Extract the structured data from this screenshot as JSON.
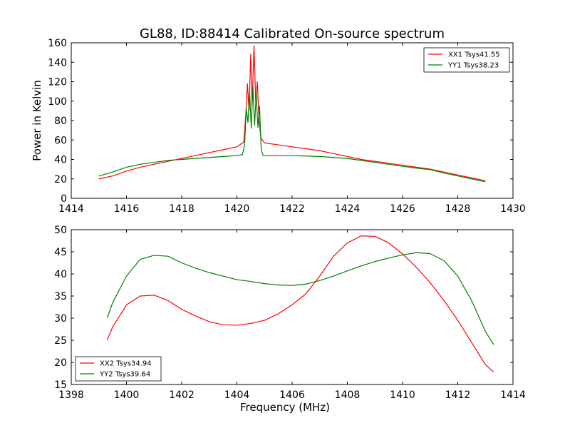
{
  "figure": {
    "title": "GL88, ID:88414 Calibrated On-source spectrum",
    "shared_xlabel": "Frequency (MHz)"
  },
  "colors": {
    "series1": "#ff0000",
    "series2": "#008000",
    "axes": "#000000",
    "background": "#ffffff"
  },
  "chart_data": [
    {
      "type": "line",
      "ylabel": "Power in Kelvin",
      "xlim": [
        1414,
        1430
      ],
      "ylim": [
        0,
        160
      ],
      "xticks": [
        1414,
        1416,
        1418,
        1420,
        1422,
        1424,
        1426,
        1428,
        1430
      ],
      "yticks": [
        0,
        20,
        40,
        60,
        80,
        100,
        120,
        140,
        160
      ],
      "legend_position": "top-right",
      "grid": false,
      "series": [
        {
          "name": "XX1 Tsys41.55",
          "color": "#ff0000",
          "points": [
            [
              1415.0,
              20
            ],
            [
              1415.5,
              23
            ],
            [
              1416.0,
              28
            ],
            [
              1416.5,
              32
            ],
            [
              1417.0,
              35
            ],
            [
              1417.5,
              38
            ],
            [
              1418.0,
              41
            ],
            [
              1418.5,
              44
            ],
            [
              1419.0,
              47
            ],
            [
              1419.5,
              50
            ],
            [
              1420.0,
              53
            ],
            [
              1420.25,
              58
            ],
            [
              1420.32,
              85
            ],
            [
              1420.38,
              118
            ],
            [
              1420.44,
              90
            ],
            [
              1420.5,
              148
            ],
            [
              1420.55,
              95
            ],
            [
              1420.62,
              157
            ],
            [
              1420.68,
              100
            ],
            [
              1420.74,
              120
            ],
            [
              1420.8,
              80
            ],
            [
              1420.87,
              62
            ],
            [
              1421.0,
              57
            ],
            [
              1421.5,
              55
            ],
            [
              1422.0,
              53
            ],
            [
              1422.5,
              51
            ],
            [
              1423.0,
              49
            ],
            [
              1423.5,
              46
            ],
            [
              1424.0,
              43
            ],
            [
              1424.5,
              40
            ],
            [
              1425.0,
              38
            ],
            [
              1425.5,
              36
            ],
            [
              1426.0,
              34
            ],
            [
              1426.5,
              32
            ],
            [
              1427.0,
              30
            ],
            [
              1427.5,
              27
            ],
            [
              1428.0,
              24
            ],
            [
              1428.5,
              21
            ],
            [
              1429.0,
              18
            ]
          ]
        },
        {
          "name": "YY1 Tsys38.23",
          "color": "#008000",
          "points": [
            [
              1415.0,
              23
            ],
            [
              1415.5,
              27
            ],
            [
              1416.0,
              32
            ],
            [
              1416.5,
              35
            ],
            [
              1417.0,
              37
            ],
            [
              1417.5,
              39
            ],
            [
              1418.0,
              40
            ],
            [
              1418.5,
              41
            ],
            [
              1419.0,
              42
            ],
            [
              1419.5,
              43
            ],
            [
              1420.0,
              44
            ],
            [
              1420.2,
              45
            ],
            [
              1420.28,
              55
            ],
            [
              1420.34,
              92
            ],
            [
              1420.4,
              78
            ],
            [
              1420.46,
              110
            ],
            [
              1420.52,
              72
            ],
            [
              1420.58,
              115
            ],
            [
              1420.64,
              75
            ],
            [
              1420.7,
              108
            ],
            [
              1420.76,
              73
            ],
            [
              1420.82,
              95
            ],
            [
              1420.88,
              50
            ],
            [
              1420.95,
              44
            ],
            [
              1421.5,
              44
            ],
            [
              1422.0,
              44
            ],
            [
              1422.5,
              43.5
            ],
            [
              1423.0,
              43
            ],
            [
              1423.5,
              42
            ],
            [
              1424.0,
              41
            ],
            [
              1424.5,
              39
            ],
            [
              1425.0,
              37
            ],
            [
              1425.5,
              35
            ],
            [
              1426.0,
              33
            ],
            [
              1426.5,
              31
            ],
            [
              1427.0,
              29.5
            ],
            [
              1427.5,
              26
            ],
            [
              1428.0,
              23
            ],
            [
              1428.5,
              20
            ],
            [
              1429.0,
              17
            ]
          ]
        }
      ]
    },
    {
      "type": "line",
      "xlabel": "Frequency (MHz)",
      "xlim": [
        1398,
        1414
      ],
      "ylim": [
        15,
        50
      ],
      "xticks": [
        1398,
        1400,
        1402,
        1404,
        1406,
        1408,
        1410,
        1412,
        1414
      ],
      "yticks": [
        15,
        20,
        25,
        30,
        35,
        40,
        45,
        50
      ],
      "legend_position": "bottom-left",
      "grid": false,
      "series": [
        {
          "name": "XX2 Tsys34.94",
          "color": "#ff0000",
          "points": [
            [
              1399.3,
              25
            ],
            [
              1399.5,
              28
            ],
            [
              1400.0,
              33
            ],
            [
              1400.5,
              35
            ],
            [
              1401.0,
              35.2
            ],
            [
              1401.5,
              34
            ],
            [
              1402.0,
              32
            ],
            [
              1402.5,
              30.5
            ],
            [
              1403.0,
              29.2
            ],
            [
              1403.5,
              28.5
            ],
            [
              1404.0,
              28.4
            ],
            [
              1404.5,
              28.8
            ],
            [
              1405.0,
              29.5
            ],
            [
              1405.5,
              31
            ],
            [
              1406.0,
              33
            ],
            [
              1406.5,
              35.5
            ],
            [
              1407.0,
              39.5
            ],
            [
              1407.5,
              44
            ],
            [
              1408.0,
              47
            ],
            [
              1408.5,
              48.6
            ],
            [
              1409.0,
              48.5
            ],
            [
              1409.5,
              47
            ],
            [
              1410.0,
              44.5
            ],
            [
              1410.5,
              41.5
            ],
            [
              1411.0,
              38
            ],
            [
              1411.5,
              34
            ],
            [
              1412.0,
              29.5
            ],
            [
              1412.5,
              24.5
            ],
            [
              1413.0,
              19.5
            ],
            [
              1413.3,
              17.8
            ]
          ]
        },
        {
          "name": "YY2 Tsys39.64",
          "color": "#008000",
          "points": [
            [
              1399.3,
              30
            ],
            [
              1399.5,
              33.5
            ],
            [
              1400.0,
              39.5
            ],
            [
              1400.5,
              43.3
            ],
            [
              1401.0,
              44.2
            ],
            [
              1401.5,
              44
            ],
            [
              1402.0,
              42.5
            ],
            [
              1402.5,
              41.3
            ],
            [
              1403.0,
              40.3
            ],
            [
              1403.5,
              39.5
            ],
            [
              1404.0,
              38.7
            ],
            [
              1404.5,
              38.3
            ],
            [
              1405.0,
              37.8
            ],
            [
              1405.5,
              37.5
            ],
            [
              1406.0,
              37.4
            ],
            [
              1406.5,
              37.7
            ],
            [
              1407.0,
              38.5
            ],
            [
              1407.5,
              39.5
            ],
            [
              1408.0,
              40.7
            ],
            [
              1408.5,
              41.8
            ],
            [
              1409.0,
              42.8
            ],
            [
              1409.5,
              43.6
            ],
            [
              1410.0,
              44.3
            ],
            [
              1410.5,
              44.8
            ],
            [
              1411.0,
              44.6
            ],
            [
              1411.5,
              43
            ],
            [
              1412.0,
              39.5
            ],
            [
              1412.5,
              34
            ],
            [
              1413.0,
              27
            ],
            [
              1413.3,
              24
            ]
          ]
        }
      ]
    }
  ]
}
